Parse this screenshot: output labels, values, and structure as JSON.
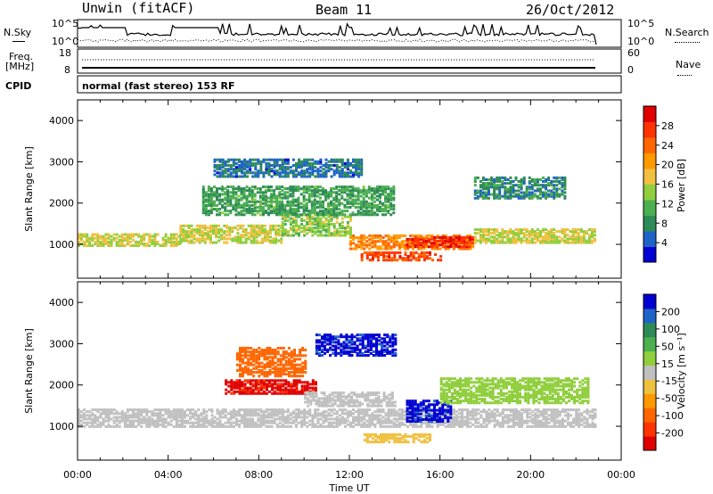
{
  "header": {
    "station": "Unwin (fitACF)",
    "beam": "Beam 11",
    "date": "26/Oct/2012"
  },
  "nsky_panel": {
    "left_label": "N.Sky",
    "right_label": "N.Search",
    "left_ticks": [
      "10^5",
      "10^0"
    ],
    "right_ticks": [
      "10^5",
      "10^0"
    ]
  },
  "freq_panel": {
    "left_label_1": "Freq.",
    "left_label_2": "[MHz]",
    "right_label": "Nave",
    "left_ticks": [
      "18",
      "8"
    ],
    "right_ticks": [
      "60",
      "0"
    ]
  },
  "cpid": {
    "label": "CPID",
    "mode": "normal (fast stereo) 153 RF"
  },
  "time_axis": {
    "label": "Time UT",
    "ticks": [
      "00:00",
      "04:00",
      "08:00",
      "12:00",
      "16:00",
      "20:00",
      "00:00"
    ]
  },
  "chart_data": [
    {
      "type": "heatmap",
      "title": "",
      "xlabel": "Time UT",
      "ylabel": "Slant Range [km]",
      "xlim_hours": [
        0,
        24
      ],
      "ylim": [
        180,
        4500
      ],
      "y_ticks": [
        1000,
        2000,
        3000,
        4000
      ],
      "colorbar": {
        "label": "Power [dB]",
        "ticks": [
          4,
          8,
          12,
          16,
          20,
          24,
          28
        ],
        "range": [
          0,
          32
        ],
        "colors": [
          "#0000d2",
          "#1e64c8",
          "#2e8b57",
          "#4caf50",
          "#8fce3c",
          "#f0c040",
          "#ff9900",
          "#ff6600",
          "#ff3300",
          "#e00000"
        ]
      },
      "data_end_hour": 22.9,
      "bands": [
        {
          "t_start": 0.0,
          "t_end": 4.5,
          "range_center": 1150,
          "range_width": 300,
          "level": 16
        },
        {
          "t_start": 4.5,
          "t_end": 9.0,
          "range_center": 1300,
          "range_width": 450,
          "level": 16
        },
        {
          "t_start": 9.0,
          "t_end": 12.0,
          "range_center": 1500,
          "range_width": 500,
          "level": 14
        },
        {
          "t_start": 12.0,
          "t_end": 17.5,
          "range_center": 1100,
          "range_width": 350,
          "level": 22
        },
        {
          "t_start": 17.5,
          "t_end": 22.9,
          "range_center": 1250,
          "range_width": 350,
          "level": 16
        },
        {
          "t_start": 5.5,
          "t_end": 14.0,
          "range_center": 2100,
          "range_width": 700,
          "level": 10
        },
        {
          "t_start": 6.0,
          "t_end": 12.5,
          "range_center": 2900,
          "range_width": 450,
          "level": 6
        },
        {
          "t_start": 12.5,
          "t_end": 16.0,
          "range_center": 750,
          "range_width": 200,
          "level": 26
        },
        {
          "t_start": 14.5,
          "t_end": 17.5,
          "range_center": 1100,
          "range_width": 250,
          "level": 28
        },
        {
          "t_start": 17.5,
          "t_end": 21.5,
          "range_center": 2400,
          "range_width": 500,
          "level": 8
        }
      ]
    },
    {
      "type": "heatmap",
      "title": "",
      "xlabel": "Time UT",
      "ylabel": "Slant Range [km]",
      "xlim_hours": [
        0,
        24
      ],
      "ylim": [
        180,
        4500
      ],
      "y_ticks": [
        1000,
        2000,
        3000,
        4000
      ],
      "colorbar": {
        "label": "Velocity [m s⁻¹]",
        "ticks": [
          200,
          100,
          50,
          15,
          -15,
          -50,
          -100,
          -200
        ],
        "colors": [
          "#0000d2",
          "#1e64c8",
          "#2e8b57",
          "#4caf50",
          "#8fce3c",
          "#c0c0c0",
          "#f0c040",
          "#ff9900",
          "#ff6600",
          "#ff3300",
          "#e00000"
        ]
      },
      "data_end_hour": 22.9,
      "bands": [
        {
          "t_start": 0.0,
          "t_end": 22.9,
          "range_center": 1250,
          "range_width": 450,
          "velocity": 0
        },
        {
          "t_start": 6.5,
          "t_end": 10.5,
          "range_center": 2000,
          "range_width": 350,
          "velocity": -200
        },
        {
          "t_start": 7.0,
          "t_end": 10.0,
          "range_center": 2600,
          "range_width": 700,
          "velocity": -150
        },
        {
          "t_start": 10.5,
          "t_end": 14.0,
          "range_center": 3000,
          "range_width": 500,
          "velocity": 200
        },
        {
          "t_start": 14.5,
          "t_end": 16.5,
          "range_center": 1400,
          "range_width": 500,
          "velocity": 200
        },
        {
          "t_start": 12.5,
          "t_end": 15.5,
          "range_center": 750,
          "range_width": 200,
          "velocity": -50
        },
        {
          "t_start": 16.0,
          "t_end": 22.5,
          "range_center": 1900,
          "range_width": 600,
          "velocity": 40
        },
        {
          "t_start": 10.0,
          "t_end": 14.0,
          "range_center": 1700,
          "range_width": 350,
          "velocity": 0
        }
      ]
    }
  ]
}
